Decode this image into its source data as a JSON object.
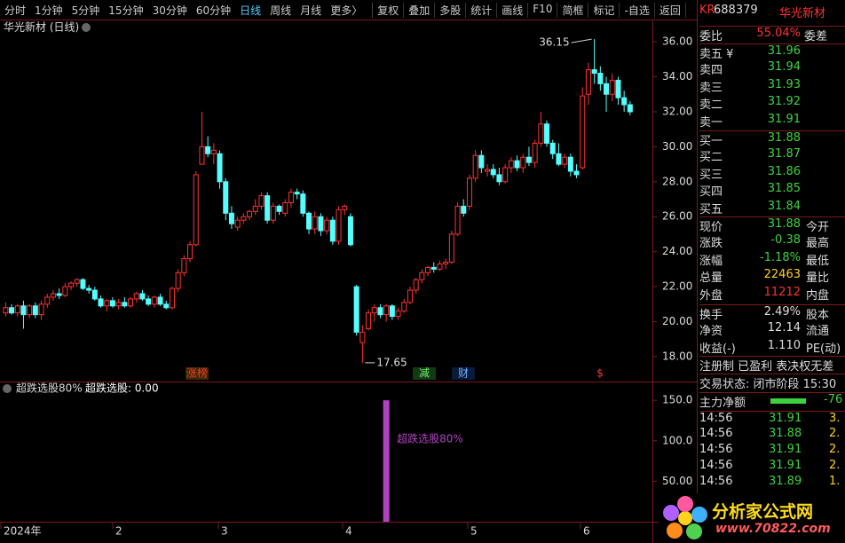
{
  "toolbar": {
    "tabs": [
      "分时",
      "1分钟",
      "5分钟",
      "15分钟",
      "30分钟",
      "60分钟",
      "日线",
      "周线",
      "月线",
      "更多〉"
    ],
    "tools": [
      "复权",
      "叠加",
      "多股",
      "统计",
      "画线",
      "F10",
      "简框",
      "标记",
      "-自选",
      "返回"
    ]
  },
  "chart": {
    "type": "candlestick",
    "title": "华光新材 (日线)",
    "up_color": "#ff3232",
    "down_color": "#54ffff",
    "ylim": [
      16.68,
      37.17
    ],
    "yticks": [
      {
        "value": 18,
        "label": "18.00"
      },
      {
        "value": 20,
        "label": "20.00"
      },
      {
        "value": 22,
        "label": "22.00"
      },
      {
        "value": 24,
        "label": "24.00"
      },
      {
        "value": 26,
        "label": "26.00"
      },
      {
        "value": 28,
        "label": "28.00"
      },
      {
        "value": 30,
        "label": "30.00"
      },
      {
        "value": 32,
        "label": "32.00"
      },
      {
        "value": 34,
        "label": "34.00"
      },
      {
        "value": 36,
        "label": "36.00"
      }
    ],
    "high_label": 36.15,
    "low_label": 17.65,
    "markers": [
      "涨榜",
      "减",
      "财",
      "$"
    ],
    "xlabels": [
      "2024年",
      "2",
      "3",
      "4",
      "5",
      "6"
    ],
    "candles": [
      [
        20.5,
        21.1,
        20.3,
        20.8
      ],
      [
        20.8,
        21.0,
        20.4,
        20.5
      ],
      [
        20.5,
        21.0,
        20.3,
        20.9
      ],
      [
        20.9,
        21.2,
        19.6,
        20.4
      ],
      [
        20.4,
        21.0,
        20.2,
        20.9
      ],
      [
        20.9,
        21.1,
        20.2,
        20.4
      ],
      [
        20.4,
        21.2,
        20.1,
        21.0
      ],
      [
        21.0,
        21.6,
        20.8,
        21.4
      ],
      [
        21.4,
        21.8,
        21.2,
        21.6
      ],
      [
        21.6,
        21.9,
        21.3,
        21.5
      ],
      [
        21.5,
        22.2,
        21.4,
        22.0
      ],
      [
        22.0,
        22.3,
        21.8,
        22.2
      ],
      [
        22.2,
        22.5,
        22.0,
        22.4
      ],
      [
        22.4,
        22.5,
        21.8,
        21.9
      ],
      [
        21.9,
        22.1,
        21.6,
        21.8
      ],
      [
        21.8,
        22.0,
        21.2,
        21.3
      ],
      [
        21.3,
        21.5,
        20.8,
        20.9
      ],
      [
        20.9,
        21.3,
        20.6,
        21.2
      ],
      [
        21.2,
        21.4,
        20.8,
        20.9
      ],
      [
        20.9,
        21.3,
        20.7,
        21.1
      ],
      [
        21.1,
        21.4,
        20.8,
        20.9
      ],
      [
        20.9,
        21.4,
        20.8,
        21.3
      ],
      [
        21.3,
        21.7,
        21.1,
        21.6
      ],
      [
        21.6,
        21.8,
        21.2,
        21.3
      ],
      [
        21.3,
        21.5,
        20.9,
        21.0
      ],
      [
        21.0,
        21.5,
        20.8,
        21.4
      ],
      [
        21.4,
        21.6,
        20.9,
        21.0
      ],
      [
        21.0,
        21.2,
        20.7,
        20.8
      ],
      [
        20.8,
        22.0,
        20.7,
        21.9
      ],
      [
        21.9,
        23.0,
        21.7,
        22.8
      ],
      [
        22.8,
        23.8,
        22.6,
        23.6
      ],
      [
        23.6,
        24.6,
        23.4,
        24.4
      ],
      [
        24.4,
        28.6,
        24.3,
        28.4
      ],
      [
        29.0,
        32.0,
        29.0,
        30.0
      ],
      [
        30.0,
        30.6,
        29.4,
        29.6
      ],
      [
        29.6,
        30.2,
        29.0,
        29.8
      ],
      [
        29.6,
        29.8,
        27.6,
        28.0
      ],
      [
        28.0,
        28.2,
        25.8,
        26.2
      ],
      [
        26.2,
        26.6,
        25.3,
        25.6
      ],
      [
        25.4,
        26.0,
        25.2,
        25.8
      ],
      [
        25.8,
        26.2,
        25.6,
        26.0
      ],
      [
        26.0,
        26.4,
        25.8,
        26.3
      ],
      [
        26.3,
        27.0,
        26.1,
        26.6
      ],
      [
        26.6,
        27.4,
        26.4,
        27.2
      ],
      [
        27.2,
        27.4,
        25.6,
        25.8
      ],
      [
        25.8,
        26.8,
        25.6,
        26.6
      ],
      [
        26.6,
        26.7,
        26.1,
        26.3
      ],
      [
        26.2,
        27.0,
        26.0,
        26.8
      ],
      [
        26.8,
        27.6,
        26.5,
        27.4
      ],
      [
        27.4,
        27.6,
        27.0,
        27.3
      ],
      [
        27.3,
        27.5,
        26.0,
        26.2
      ],
      [
        26.2,
        26.3,
        25.0,
        25.3
      ],
      [
        25.3,
        26.3,
        25.0,
        26.0
      ],
      [
        26.0,
        26.2,
        24.9,
        25.2
      ],
      [
        25.2,
        26.0,
        25.0,
        25.8
      ],
      [
        25.8,
        26.0,
        24.4,
        24.6
      ],
      [
        24.6,
        26.6,
        24.4,
        26.4
      ],
      [
        26.4,
        26.7,
        26.1,
        26.6
      ],
      [
        26.0,
        26.2,
        24.3,
        24.4
      ],
      [
        22.0,
        22.1,
        19.2,
        19.4
      ],
      [
        18.8,
        19.8,
        17.65,
        19.4
      ],
      [
        19.6,
        20.7,
        19.5,
        20.5
      ],
      [
        20.5,
        21.0,
        20.0,
        20.8
      ],
      [
        20.8,
        21.0,
        20.2,
        20.4
      ],
      [
        20.4,
        21.0,
        20.0,
        20.9
      ],
      [
        20.9,
        21.0,
        20.1,
        20.3
      ],
      [
        20.3,
        20.8,
        20.1,
        20.6
      ],
      [
        20.6,
        21.3,
        20.5,
        21.1
      ],
      [
        21.1,
        22.0,
        21.0,
        21.8
      ],
      [
        21.8,
        22.5,
        21.6,
        22.4
      ],
      [
        22.4,
        23.0,
        22.2,
        22.8
      ],
      [
        22.8,
        23.2,
        22.6,
        23.1
      ],
      [
        23.1,
        23.4,
        22.8,
        23.0
      ],
      [
        23.0,
        23.5,
        22.9,
        23.3
      ],
      [
        23.3,
        23.6,
        23.0,
        23.4
      ],
      [
        23.4,
        25.2,
        23.3,
        25.0
      ],
      [
        25.0,
        26.8,
        24.9,
        26.6
      ],
      [
        26.6,
        27.0,
        26.0,
        26.2
      ],
      [
        26.6,
        28.4,
        26.4,
        28.2
      ],
      [
        28.2,
        29.8,
        28.0,
        29.5
      ],
      [
        29.5,
        29.8,
        28.5,
        28.8
      ],
      [
        28.6,
        29.0,
        28.3,
        28.7
      ],
      [
        28.7,
        29.0,
        28.2,
        28.4
      ],
      [
        28.4,
        28.8,
        27.8,
        28.0
      ],
      [
        28.0,
        29.0,
        27.9,
        28.8
      ],
      [
        28.8,
        29.4,
        28.5,
        29.2
      ],
      [
        29.2,
        29.5,
        28.6,
        28.8
      ],
      [
        28.8,
        29.6,
        28.5,
        29.4
      ],
      [
        29.4,
        30.0,
        28.9,
        29.1
      ],
      [
        29.1,
        30.4,
        28.8,
        30.2
      ],
      [
        30.2,
        32.0,
        30.0,
        31.3
      ],
      [
        31.3,
        31.5,
        30.0,
        30.2
      ],
      [
        30.2,
        30.4,
        29.3,
        29.6
      ],
      [
        29.6,
        30.2,
        28.9,
        29.0
      ],
      [
        29.0,
        29.6,
        28.8,
        29.4
      ],
      [
        29.4,
        29.6,
        28.3,
        28.6
      ],
      [
        28.6,
        29.0,
        28.2,
        28.4
      ],
      [
        28.8,
        33.4,
        28.7,
        32.9
      ],
      [
        33.0,
        34.8,
        32.4,
        34.4
      ],
      [
        34.4,
        36.15,
        33.6,
        34.2
      ],
      [
        34.2,
        34.6,
        33.2,
        33.6
      ],
      [
        33.6,
        34.0,
        32.0,
        33.0
      ],
      [
        33.0,
        34.2,
        32.6,
        33.8
      ],
      [
        33.8,
        34.0,
        32.4,
        32.8
      ],
      [
        32.8,
        33.2,
        32.0,
        32.4
      ],
      [
        32.4,
        32.6,
        31.8,
        32.0
      ]
    ]
  },
  "indicator": {
    "type": "bar",
    "title": "超跌选股80%",
    "readout": "超跌选股: 0.00",
    "bar_label": "超跌选股80%",
    "color": "#b044c0",
    "ylim": [
      0,
      171
    ],
    "yticks": [
      {
        "value": 50,
        "label": "50.00"
      },
      {
        "value": 100,
        "label": "100.0"
      },
      {
        "value": 150,
        "label": "150.0"
      }
    ],
    "values": [
      0,
      0,
      0,
      0,
      0,
      0,
      0,
      0,
      0,
      0,
      0,
      0,
      0,
      0,
      0,
      0,
      0,
      0,
      0,
      0,
      0,
      0,
      0,
      0,
      0,
      0,
      0,
      0,
      0,
      0,
      0,
      0,
      0,
      0,
      0,
      0,
      0,
      0,
      0,
      0,
      0,
      0,
      0,
      0,
      0,
      0,
      0,
      0,
      0,
      0,
      0,
      0,
      0,
      0,
      0,
      0,
      0,
      0,
      0,
      0,
      0,
      0,
      0,
      0,
      150,
      0,
      0,
      0,
      0,
      0,
      0,
      0,
      0,
      0,
      0,
      0,
      0,
      0,
      0,
      0,
      0,
      0,
      0,
      0,
      0,
      0,
      0,
      0,
      0,
      0,
      0,
      0,
      0,
      0,
      0,
      0,
      0,
      0,
      0,
      0,
      0,
      0,
      0,
      0,
      0,
      0
    ]
  },
  "quote": {
    "badge": "KR",
    "code": "688379",
    "name": "华光新材",
    "ratio": [
      "委比",
      "55.04%",
      "委差"
    ],
    "book": [
      [
        "卖五 ¥",
        "31.96"
      ],
      [
        "卖四",
        "31.94"
      ],
      [
        "卖三",
        "31.93"
      ],
      [
        "卖二",
        "31.92"
      ],
      [
        "卖一",
        "31.91"
      ],
      [
        "买一",
        "31.88"
      ],
      [
        "买二",
        "31.87"
      ],
      [
        "买三",
        "31.86"
      ],
      [
        "买四",
        "31.85"
      ],
      [
        "买五",
        "31.84"
      ]
    ],
    "stats": [
      [
        "现价",
        "31.88",
        "今开"
      ],
      [
        "涨跌",
        "-0.38",
        "最高"
      ],
      [
        "涨幅",
        "-1.18%",
        "最低"
      ],
      [
        "总量",
        "22463",
        "量比"
      ],
      [
        "外盘",
        "11212",
        "内盘"
      ],
      [
        "换手",
        "2.49%",
        "股本"
      ],
      [
        "净资",
        "12.14",
        "流通"
      ],
      [
        "收益(-)",
        "1.110",
        "PE(动)"
      ]
    ],
    "tags": "注册制 已盈利 表决权无差",
    "status": "交易状态: 闭市阶段 15:30",
    "flow": [
      "主力净额",
      "-76"
    ],
    "trades": [
      [
        "14:56",
        "31.91",
        "3."
      ],
      [
        "14:56",
        "31.88",
        "2."
      ],
      [
        "14:56",
        "31.91",
        "2."
      ],
      [
        "14:56",
        "31.91",
        "2."
      ],
      [
        "14:56",
        "31.89",
        "1."
      ]
    ]
  },
  "watermark": {
    "name": "分析家公式网",
    "url": "www.70822.com"
  }
}
